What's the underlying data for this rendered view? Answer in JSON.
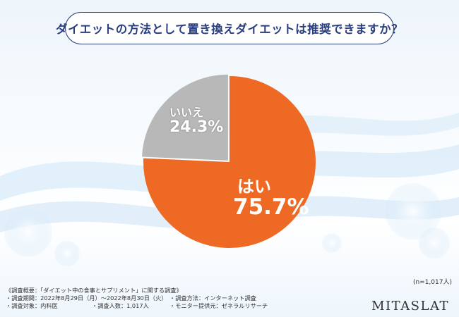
{
  "title": "ダイエットの方法として置き換えダイエットは推奨できますか？",
  "chart_data": {
    "type": "pie",
    "slices": [
      {
        "name": "はい",
        "value": 75.7,
        "label": "75.7%",
        "color": "#ee6a24"
      },
      {
        "name": "いいえ",
        "value": 24.3,
        "label": "24.3%",
        "color": "#b8b8b8"
      }
    ],
    "sample_note": "(n=1,017人)"
  },
  "notes": {
    "heading": "《調査概要：「ダイエット中の食事とサプリメント」に関する調査》",
    "period": "・調査期間：2022年8月29日（月）～2022年8月30日（火）",
    "method": "・調査方法：インターネット調査",
    "target": "・調査対象：内科医",
    "count": "・調査人数：1,017人",
    "provider": "・モニター提供元：ゼネラルリサーチ"
  },
  "brand": "MITASLAT"
}
